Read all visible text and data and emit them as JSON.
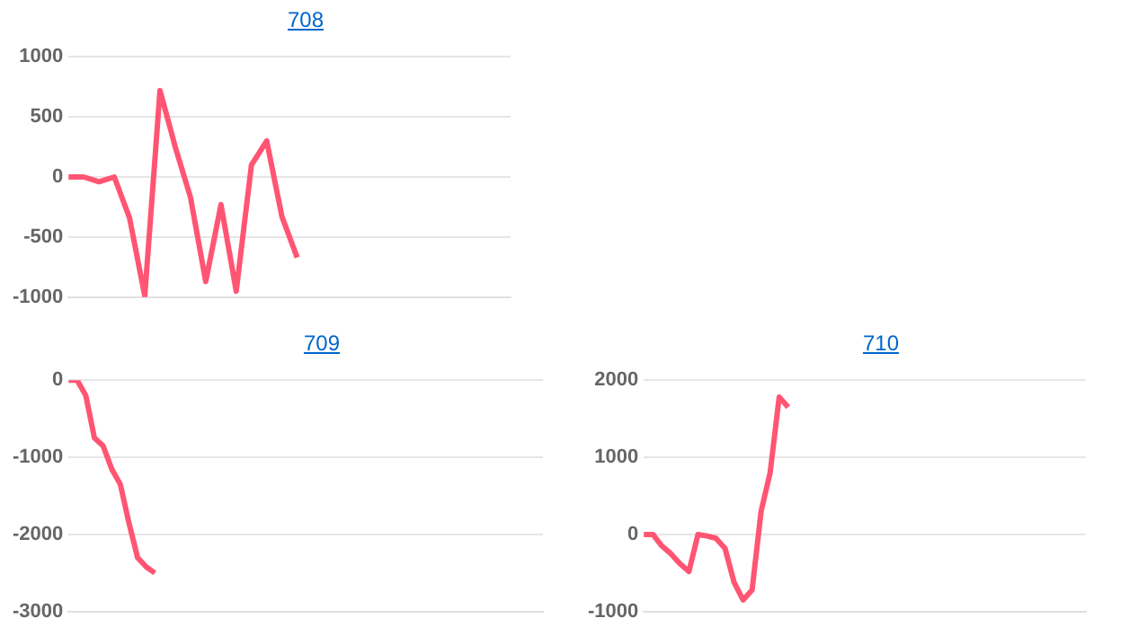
{
  "chart_data": [
    {
      "type": "line",
      "title": "708",
      "categories": [
        null,
        null,
        null,
        null,
        null,
        null,
        null,
        null,
        null,
        null,
        null,
        null,
        null,
        null,
        null,
        null,
        null,
        null,
        null,
        null,
        null,
        null,
        null,
        null,
        null,
        null,
        null,
        null,
        null,
        null
      ],
      "series": [
        {
          "color": "#ff5573",
          "values": [
            0,
            0,
            -40,
            0,
            -340,
            -990,
            720,
            250,
            -170,
            -870,
            -230,
            -950,
            100,
            300,
            -330,
            -670,
            null,
            null,
            null,
            null,
            null,
            null,
            null,
            null,
            null,
            null,
            null,
            null,
            null,
            null
          ]
        }
      ],
      "ylim": [
        -1000,
        1000
      ],
      "yticks": [
        -1000,
        -500,
        0,
        500,
        1000
      ],
      "grid": "y",
      "tick_labels": "y",
      "marker": "none",
      "line_style": "solid"
    },
    {
      "type": "line",
      "title": "709",
      "categories": [
        null,
        null,
        null,
        null,
        null,
        null,
        null,
        null,
        null,
        null,
        null,
        null,
        null,
        null,
        null,
        null,
        null,
        null,
        null,
        null,
        null,
        null,
        null,
        null,
        null,
        null,
        null,
        null,
        null,
        null,
        null,
        null,
        null,
        null,
        null,
        null,
        null,
        null,
        null,
        null,
        null,
        null,
        null,
        null,
        null,
        null,
        null,
        null,
        null,
        null,
        null,
        null,
        null,
        null,
        null,
        null
      ],
      "series": [
        {
          "color": "#ff5573",
          "values": [
            0,
            0,
            -200,
            -750,
            -850,
            -1150,
            -1350,
            -1850,
            -2300,
            -2420,
            -2500,
            null,
            null,
            null,
            null,
            null,
            null,
            null,
            null,
            null,
            null,
            null,
            null,
            null,
            null,
            null,
            null,
            null,
            null,
            null,
            null,
            null,
            null,
            null,
            null,
            null,
            null,
            null,
            null,
            null,
            null,
            null,
            null,
            null,
            null,
            null,
            null,
            null,
            null,
            null,
            null,
            null,
            null,
            null,
            null,
            null
          ]
        }
      ],
      "ylim": [
        -3000,
        0
      ],
      "yticks": [
        -3000,
        -2000,
        -1000,
        0
      ],
      "grid": "y",
      "tick_labels": "y",
      "marker": "none",
      "line_style": "solid"
    },
    {
      "type": "line",
      "title": "710",
      "categories": [
        null,
        null,
        null,
        null,
        null,
        null,
        null,
        null,
        null,
        null,
        null,
        null,
        null,
        null,
        null,
        null,
        null,
        null,
        null,
        null,
        null,
        null,
        null,
        null,
        null,
        null,
        null,
        null,
        null,
        null,
        null,
        null,
        null,
        null,
        null,
        null,
        null,
        null,
        null,
        null,
        null,
        null,
        null,
        null,
        null,
        null,
        null,
        null,
        null,
        null
      ],
      "series": [
        {
          "color": "#ff5573",
          "values": [
            0,
            0,
            -150,
            -250,
            -380,
            -480,
            0,
            -20,
            -50,
            -180,
            -620,
            -850,
            -720,
            300,
            800,
            1780,
            1650,
            null,
            null,
            null,
            null,
            null,
            null,
            null,
            null,
            null,
            null,
            null,
            null,
            null,
            null,
            null,
            null,
            null,
            null,
            null,
            null,
            null,
            null,
            null,
            null,
            null,
            null,
            null,
            null,
            null,
            null,
            null,
            null,
            null
          ]
        }
      ],
      "ylim": [
        -1000,
        2000
      ],
      "yticks": [
        -1000,
        0,
        1000,
        2000
      ],
      "grid": "y",
      "tick_labels": "y",
      "marker": "none",
      "line_style": "solid"
    }
  ]
}
